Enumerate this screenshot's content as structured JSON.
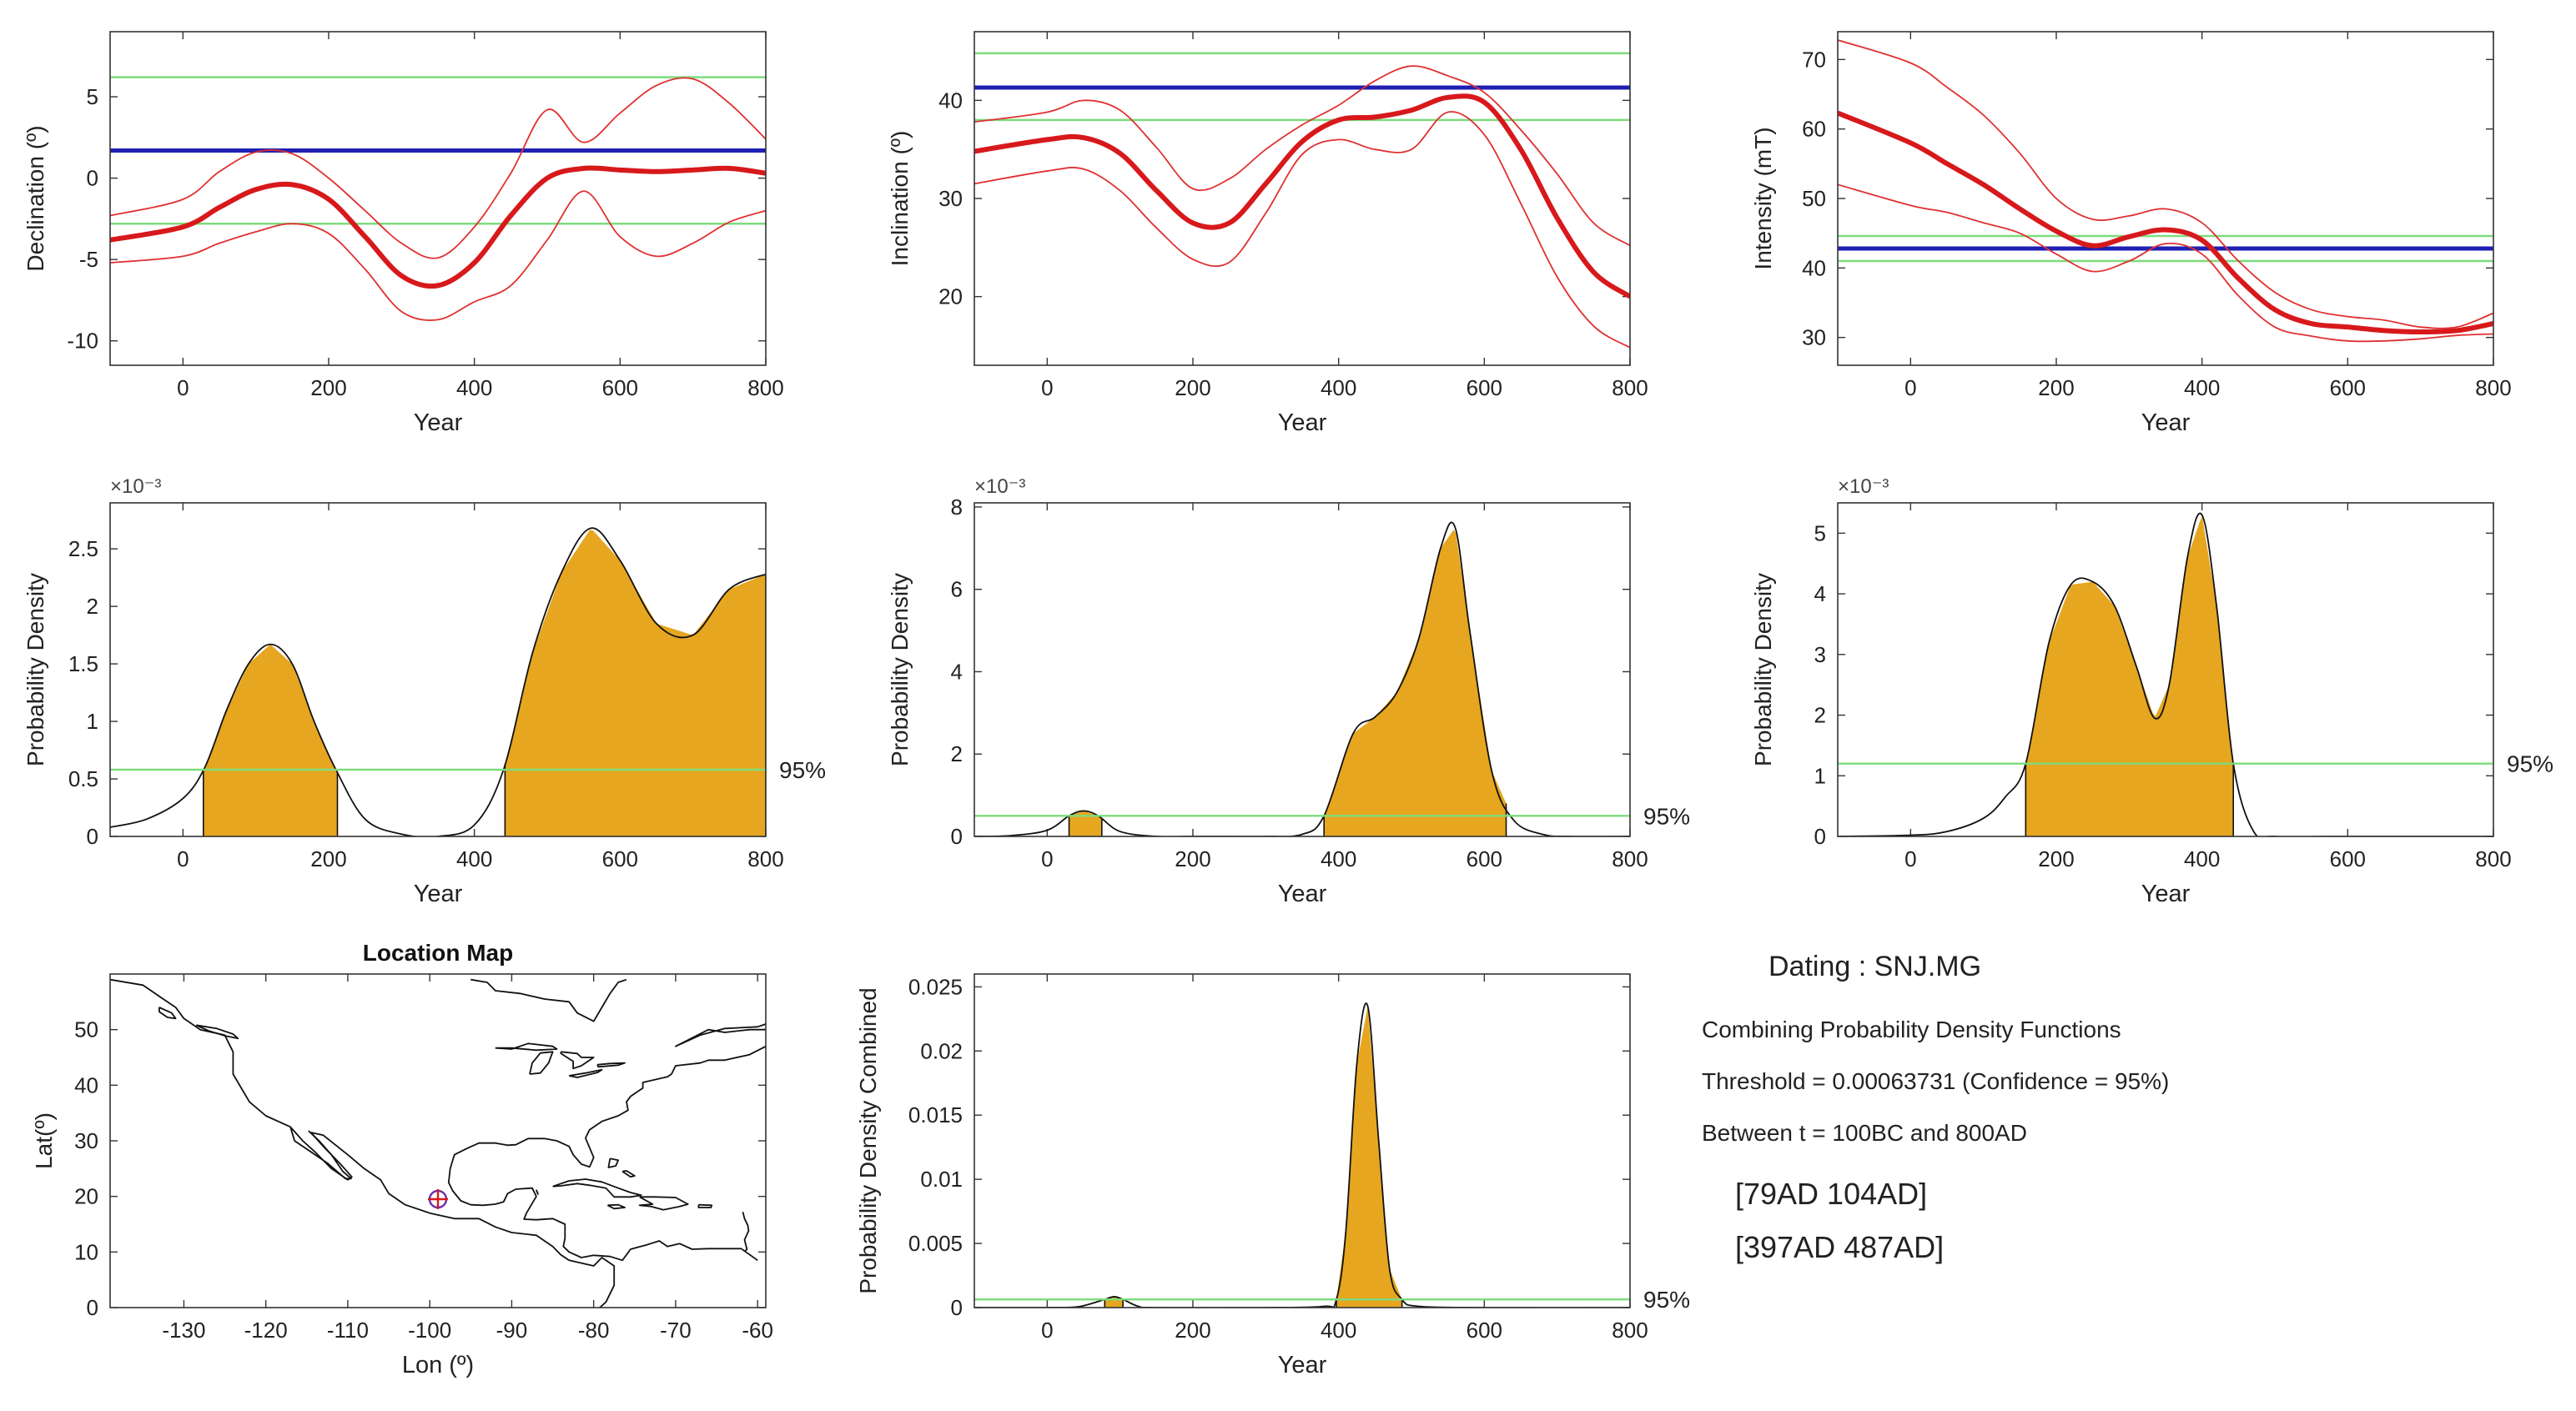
{
  "chart_data": [
    {
      "type": "line",
      "id": "declination",
      "xlabel": "Year",
      "ylabel": "Declination (º)",
      "xlim": [
        -100,
        800
      ],
      "ylim": [
        -11.5,
        9
      ],
      "xticks": [
        0,
        200,
        400,
        600,
        800
      ],
      "yticks": [
        -10,
        -5,
        0,
        5
      ],
      "reference": 1.7,
      "reference_bounds": [
        -2.8,
        6.2
      ],
      "x": [
        -100,
        0,
        50,
        100,
        150,
        200,
        250,
        300,
        350,
        400,
        450,
        500,
        550,
        600,
        650,
        700,
        750,
        800
      ],
      "series": [
        {
          "name": "mean",
          "values": [
            -3.8,
            -3.0,
            -1.8,
            -0.7,
            -0.4,
            -1.3,
            -3.6,
            -6.0,
            -6.6,
            -5.2,
            -2.3,
            0.0,
            0.6,
            0.5,
            0.4,
            0.5,
            0.6,
            0.3
          ]
        },
        {
          "name": "upper",
          "values": [
            -2.3,
            -1.3,
            0.4,
            1.6,
            1.5,
            0.0,
            -2.0,
            -4.0,
            -4.9,
            -3.0,
            0.3,
            4.2,
            2.2,
            4.0,
            5.7,
            6.1,
            4.6,
            2.4
          ]
        },
        {
          "name": "lower",
          "values": [
            -5.2,
            -4.8,
            -4.0,
            -3.3,
            -2.8,
            -3.4,
            -5.6,
            -8.2,
            -8.7,
            -7.6,
            -6.6,
            -3.8,
            -0.8,
            -3.6,
            -4.8,
            -4.0,
            -2.7,
            -2.0
          ]
        }
      ]
    },
    {
      "type": "line",
      "id": "inclination",
      "xlabel": "Year",
      "ylabel": "Inclination (º)",
      "xlim": [
        -100,
        800
      ],
      "ylim": [
        13,
        47
      ],
      "xticks": [
        0,
        200,
        400,
        600,
        800
      ],
      "yticks": [
        20,
        30,
        40
      ],
      "reference": 41.3,
      "reference_bounds": [
        38.0,
        44.8
      ],
      "x": [
        -100,
        0,
        50,
        100,
        150,
        200,
        250,
        300,
        350,
        400,
        450,
        500,
        550,
        600,
        650,
        700,
        750,
        800
      ],
      "series": [
        {
          "name": "mean",
          "values": [
            34.8,
            36.0,
            36.2,
            34.6,
            30.8,
            27.5,
            27.5,
            31.5,
            35.8,
            38.0,
            38.3,
            39.0,
            40.3,
            39.8,
            35.0,
            28.0,
            22.5,
            20.0
          ]
        },
        {
          "name": "upper",
          "values": [
            37.8,
            38.8,
            40.0,
            39.0,
            35.2,
            31.0,
            32.0,
            35.0,
            37.5,
            39.5,
            42.0,
            43.5,
            42.5,
            40.8,
            37.0,
            32.5,
            27.5,
            25.2
          ]
        },
        {
          "name": "lower",
          "values": [
            31.5,
            32.8,
            33.0,
            30.8,
            27.0,
            23.8,
            23.5,
            28.5,
            34.5,
            36.0,
            35.0,
            35.0,
            38.8,
            36.5,
            29.5,
            22.0,
            17.0,
            14.8
          ]
        }
      ]
    },
    {
      "type": "line",
      "id": "intensity",
      "xlabel": "Year",
      "ylabel": "Intensity (mT)",
      "xlim": [
        -100,
        800
      ],
      "ylim": [
        26,
        74
      ],
      "xticks": [
        0,
        200,
        400,
        600,
        800
      ],
      "yticks": [
        30,
        40,
        50,
        60,
        70
      ],
      "reference": 42.8,
      "reference_bounds": [
        41.0,
        44.6
      ],
      "x": [
        -100,
        0,
        50,
        100,
        150,
        200,
        250,
        300,
        350,
        400,
        450,
        500,
        550,
        600,
        650,
        700,
        750,
        800
      ],
      "series": [
        {
          "name": "mean",
          "values": [
            62.3,
            58.0,
            55.0,
            52.0,
            48.5,
            45.3,
            43.2,
            44.5,
            45.5,
            44.0,
            38.5,
            34.0,
            32.0,
            31.5,
            31.0,
            30.8,
            31.0,
            32.0
          ]
        },
        {
          "name": "upper",
          "values": [
            72.8,
            69.5,
            66.0,
            62.0,
            56.5,
            50.0,
            47.0,
            47.5,
            48.5,
            46.5,
            41.0,
            36.5,
            34.0,
            33.0,
            32.5,
            31.5,
            31.5,
            33.5
          ]
        },
        {
          "name": "lower",
          "values": [
            52.0,
            49.0,
            48.0,
            46.5,
            45.0,
            42.0,
            39.5,
            41.0,
            43.5,
            42.0,
            36.0,
            31.5,
            30.2,
            29.5,
            29.5,
            29.8,
            30.3,
            30.5
          ]
        }
      ]
    },
    {
      "type": "area",
      "id": "pdf-declination",
      "xlabel": "Year",
      "ylabel": "Probability Density",
      "exponent_label": "×10⁻³",
      "xlim": [
        -100,
        800
      ],
      "ylim": [
        0,
        2.9
      ],
      "xticks": [
        0,
        200,
        400,
        600,
        800
      ],
      "yticks": [
        0,
        0.5,
        1,
        1.5,
        2,
        2.5
      ],
      "ytick_labels": [
        "0",
        "0.5",
        "1",
        "1.5",
        "2",
        "2.5"
      ],
      "threshold": 0.58,
      "threshold_label": "95%",
      "intervals": [
        [
          28,
          212
        ],
        [
          442,
          800
        ]
      ],
      "x": [
        -100,
        -50,
        0,
        30,
        60,
        90,
        120,
        150,
        180,
        210,
        250,
        300,
        350,
        400,
        440,
        480,
        520,
        560,
        600,
        650,
        700,
        750,
        800
      ],
      "values": [
        0.08,
        0.15,
        0.33,
        0.6,
        1.1,
        1.5,
        1.67,
        1.5,
        1.0,
        0.58,
        0.15,
        0.02,
        0.0,
        0.1,
        0.58,
        1.6,
        2.3,
        2.68,
        2.4,
        1.85,
        1.75,
        2.15,
        2.28
      ]
    },
    {
      "type": "area",
      "id": "pdf-inclination",
      "xlabel": "Year",
      "ylabel": "Probability Density",
      "exponent_label": "×10⁻³",
      "xlim": [
        -100,
        800
      ],
      "ylim": [
        0,
        8.1
      ],
      "xticks": [
        0,
        200,
        400,
        600,
        800
      ],
      "yticks": [
        0,
        2,
        4,
        6,
        8
      ],
      "ytick_labels": [
        "0",
        "2",
        "4",
        "6",
        "8"
      ],
      "threshold": 0.5,
      "threshold_label": "95%",
      "intervals": [
        [
          30,
          75
        ],
        [
          380,
          630
        ]
      ],
      "x": [
        -100,
        -50,
        0,
        30,
        50,
        70,
        100,
        150,
        200,
        250,
        300,
        350,
        380,
        420,
        450,
        480,
        510,
        540,
        560,
        580,
        610,
        640,
        680,
        720,
        800
      ],
      "values": [
        0.0,
        0.02,
        0.15,
        0.5,
        0.62,
        0.5,
        0.12,
        0.0,
        0.0,
        0.0,
        0.0,
        0.05,
        0.5,
        2.5,
        2.9,
        3.5,
        4.8,
        7.0,
        7.5,
        5.0,
        1.6,
        0.4,
        0.05,
        0.0,
        0.0
      ]
    },
    {
      "type": "area",
      "id": "pdf-intensity",
      "xlabel": "Year",
      "ylabel": "Probability Density",
      "exponent_label": "×10⁻³",
      "xlim": [
        -100,
        800
      ],
      "ylim": [
        0,
        5.5
      ],
      "xticks": [
        0,
        200,
        400,
        600,
        800
      ],
      "yticks": [
        0,
        1,
        2,
        3,
        4,
        5
      ],
      "ytick_labels": [
        "0",
        "1",
        "2",
        "3",
        "4",
        "5"
      ],
      "threshold": 1.2,
      "threshold_label": "95%",
      "intervals": [
        [
          158,
          443
        ],
        [
          158,
          443
        ]
      ],
      "x": [
        -100,
        0,
        50,
        100,
        130,
        158,
        190,
        220,
        250,
        280,
        310,
        335,
        355,
        380,
        400,
        420,
        443,
        470,
        500,
        600,
        800
      ],
      "values": [
        0.0,
        0.02,
        0.08,
        0.3,
        0.65,
        1.2,
        3.2,
        4.15,
        4.2,
        3.8,
        2.8,
        1.95,
        2.5,
        4.6,
        5.3,
        3.8,
        1.2,
        0.1,
        0.0,
        0.0,
        0.0
      ]
    },
    {
      "type": "area",
      "id": "pdf-combined",
      "xlabel": "Year",
      "ylabel": "Probability Density Combined",
      "xlim": [
        -100,
        800
      ],
      "ylim": [
        0,
        0.026
      ],
      "xticks": [
        0,
        200,
        400,
        600,
        800
      ],
      "yticks": [
        0,
        0.005,
        0.01,
        0.015,
        0.02,
        0.025
      ],
      "ytick_labels": [
        "0",
        "0.005",
        "0.01",
        "0.015",
        "0.02",
        "0.025"
      ],
      "threshold": 0.00063731,
      "threshold_label": "95%",
      "intervals": [
        [
          79,
          104
        ],
        [
          397,
          487
        ]
      ],
      "x": [
        -100,
        0,
        40,
        60,
        79,
        92,
        104,
        125,
        150,
        300,
        380,
        397,
        410,
        425,
        440,
        455,
        470,
        487,
        510,
        600,
        800
      ],
      "values": [
        0.0,
        0.0,
        5e-05,
        0.0003,
        0.00064,
        0.00085,
        0.00064,
        0.0001,
        0.0,
        0.0,
        0.0001,
        0.00064,
        0.006,
        0.019,
        0.0235,
        0.013,
        0.003,
        0.00064,
        0.0001,
        0.0,
        0.0
      ]
    },
    {
      "type": "map",
      "id": "location-map",
      "title": "Location Map",
      "xlabel": "Lon (º)",
      "ylabel": "Lat(º)",
      "xlim": [
        -139,
        -59
      ],
      "ylim": [
        0,
        60
      ],
      "xticks": [
        -130,
        -120,
        -110,
        -100,
        -90,
        -80,
        -70,
        -60
      ],
      "yticks": [
        0,
        10,
        20,
        30,
        40,
        50
      ],
      "site": {
        "lon": -99,
        "lat": 19.5
      }
    }
  ],
  "info": {
    "title": "Dating : SNJ.MG",
    "method": "Combining Probability Density Functions",
    "threshold": "Threshold = 0.00063731 (Confidence = 95%)",
    "range": "Between t = 100BC and 800AD",
    "intervals": [
      "[79AD   104AD]",
      "[397AD   487AD]"
    ]
  },
  "colors": {
    "mean_curve": "#d7191c",
    "bounds_curve": "#e03030",
    "reference_line": "#1f1fb4",
    "reference_bounds": "#7ddc7d",
    "fill": "#e6a620",
    "site_marker": "#6a2cb0"
  }
}
